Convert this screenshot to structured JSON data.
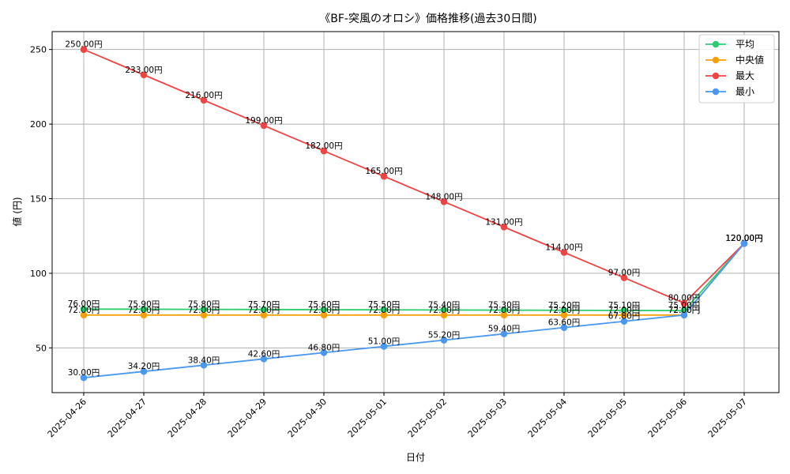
{
  "chart_data": {
    "type": "line",
    "title": "《BF-突風のオロシ》価格推移(過去30日間)",
    "xlabel": "日付",
    "ylabel": "値 (円)",
    "categories": [
      "2025-04-26",
      "2025-04-27",
      "2025-04-28",
      "2025-04-29",
      "2025-04-30",
      "2025-05-01",
      "2025-05-02",
      "2025-05-03",
      "2025-05-04",
      "2025-05-05",
      "2025-05-06",
      "2025-05-07"
    ],
    "ylim": [
      20,
      262
    ],
    "yticks": [
      50,
      100,
      150,
      200,
      250
    ],
    "grid": true,
    "legend_position": "top-right",
    "series": [
      {
        "name": "平均",
        "color": "#2ecc71",
        "values": [
          76.0,
          75.9,
          75.8,
          75.7,
          75.6,
          75.5,
          75.4,
          75.3,
          75.2,
          75.1,
          75.0,
          120.0
        ],
        "labels": [
          "76.00円",
          "75.90円",
          "75.80円",
          "75.70円",
          "75.60円",
          "75.50円",
          "75.40円",
          "75.30円",
          "75.20円",
          "75.10円",
          "75.00円",
          "120.00円"
        ]
      },
      {
        "name": "中央値",
        "color": "#f5a20a",
        "values": [
          72.0,
          72.0,
          72.0,
          72.0,
          72.0,
          72.0,
          72.0,
          72.0,
          72.0,
          72.0,
          72.0,
          120.0
        ],
        "labels": [
          "72.00円",
          "72.00円",
          "72.00円",
          "72.00円",
          "72.00円",
          "72.00円",
          "72.00円",
          "72.00円",
          "72.00円",
          "72.00円",
          "72.00円",
          "120.00円"
        ]
      },
      {
        "name": "最大",
        "color": "#ef4444",
        "values": [
          250.0,
          233.0,
          216.0,
          199.0,
          182.0,
          165.0,
          148.0,
          131.0,
          114.0,
          97.0,
          80.0,
          120.0
        ],
        "labels": [
          "250.00円",
          "233.00円",
          "216.00円",
          "199.00円",
          "182.00円",
          "165.00円",
          "148.00円",
          "131.00円",
          "114.00円",
          "97.00円",
          "80.00円",
          "120.00円"
        ]
      },
      {
        "name": "最小",
        "color": "#4a98f0",
        "values": [
          30.0,
          34.2,
          38.4,
          42.6,
          46.8,
          51.0,
          55.2,
          59.4,
          63.6,
          67.8,
          72.0,
          120.0
        ],
        "labels": [
          "30.00円",
          "34.20円",
          "38.40円",
          "42.60円",
          "46.80円",
          "51.00円",
          "55.20円",
          "59.40円",
          "63.60円",
          "67.80円",
          "72.00円",
          "120.00円"
        ]
      }
    ]
  }
}
